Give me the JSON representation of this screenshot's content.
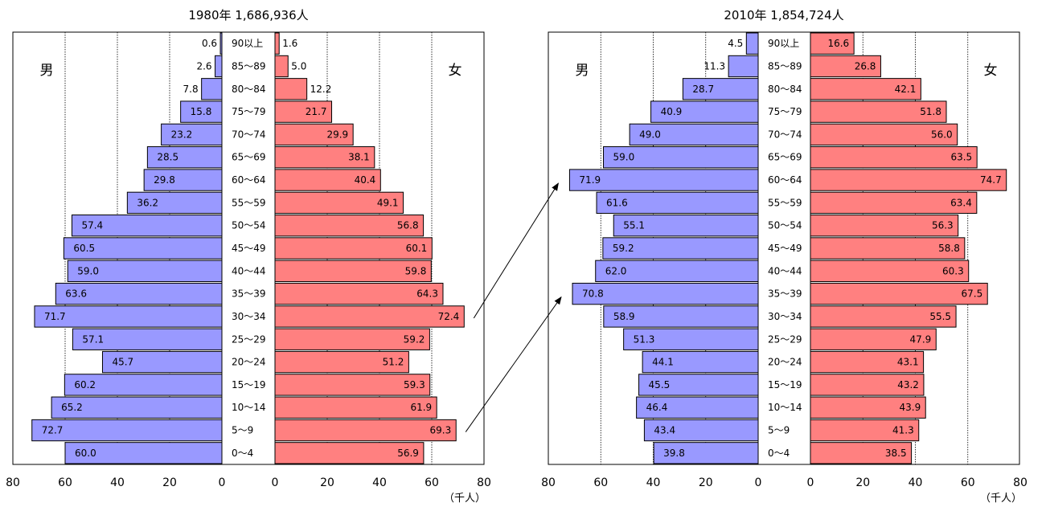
{
  "chart_data": {
    "type": "bar",
    "orientation": "horizontal-pyramid",
    "age_groups": [
      "90以上",
      "85～89",
      "80～84",
      "75～79",
      "70～74",
      "65～69",
      "60～64",
      "55～59",
      "50～54",
      "45～49",
      "40～44",
      "35～39",
      "30～34",
      "25～29",
      "20～24",
      "15～19",
      "10～14",
      "5～9",
      "0～4"
    ],
    "axis_ticks": [
      "80",
      "60",
      "40",
      "20",
      "0"
    ],
    "axis_ticks_right": [
      "0",
      "20",
      "40",
      "60",
      "80"
    ],
    "xlim": [
      0,
      80
    ],
    "unit_label": "（千人）",
    "male_label": "男",
    "female_label": "女",
    "colors": {
      "male": "#9999ff",
      "female": "#ff8080"
    },
    "pyramids": [
      {
        "title": "1980年 1,686,936人",
        "male": [
          0.6,
          2.6,
          7.8,
          15.8,
          23.2,
          28.5,
          29.8,
          36.2,
          57.4,
          60.5,
          59.0,
          63.6,
          71.7,
          57.1,
          45.7,
          60.2,
          65.2,
          72.7,
          60.0
        ],
        "female": [
          1.6,
          5.0,
          12.2,
          21.7,
          29.9,
          38.1,
          40.4,
          49.1,
          56.8,
          60.1,
          59.8,
          64.3,
          72.4,
          59.2,
          51.2,
          59.3,
          61.9,
          69.3,
          56.9
        ]
      },
      {
        "title": "2010年 1,854,724人",
        "male": [
          4.5,
          11.3,
          28.7,
          40.9,
          49.0,
          59.0,
          71.9,
          61.6,
          55.1,
          59.2,
          62.0,
          70.8,
          58.9,
          51.3,
          44.1,
          45.5,
          46.4,
          43.4,
          39.8
        ],
        "female": [
          16.6,
          26.8,
          42.1,
          51.8,
          56.0,
          63.5,
          74.7,
          63.4,
          56.3,
          58.8,
          60.3,
          67.5,
          55.5,
          47.9,
          43.1,
          43.2,
          43.9,
          41.3,
          38.5
        ]
      }
    ]
  }
}
